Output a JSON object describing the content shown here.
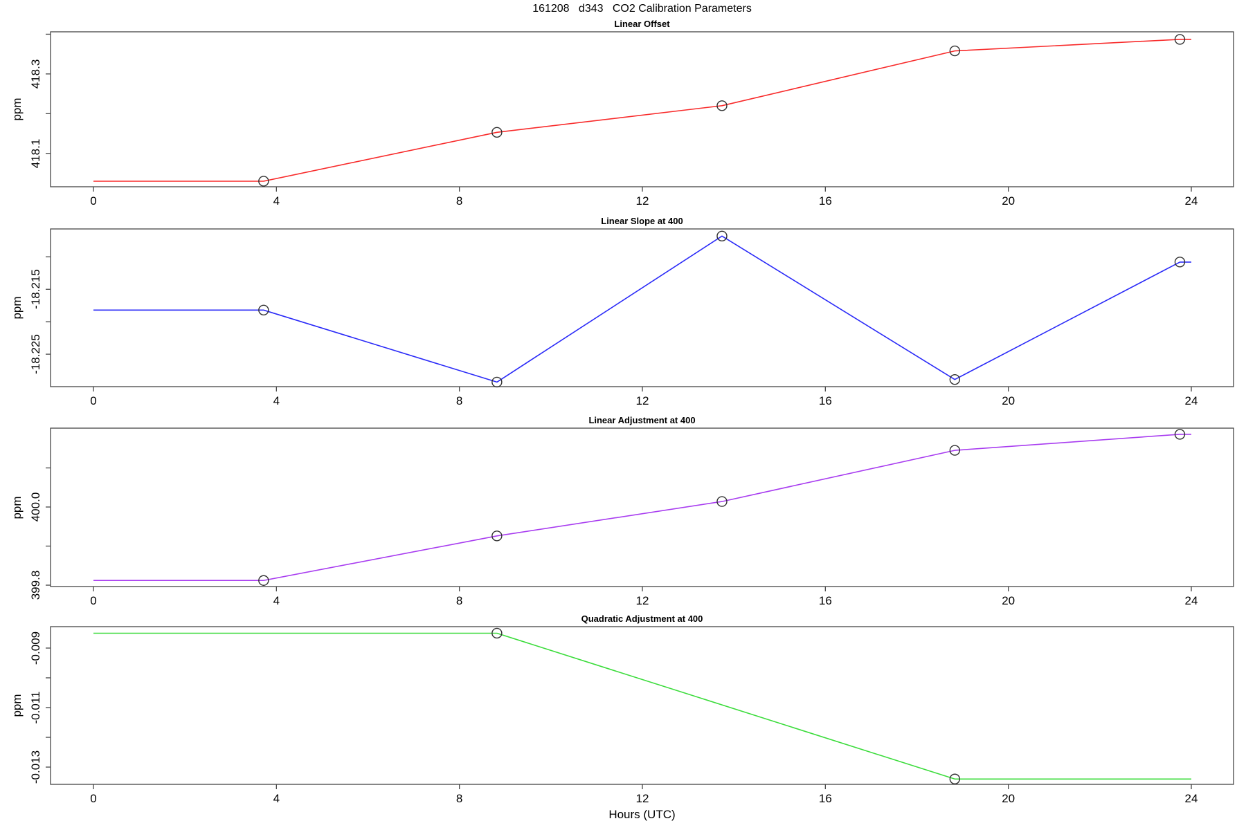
{
  "title": "161208   d343   CO2 Calibration Parameters",
  "xlabel": "Hours (UTC)",
  "axis_color": "#454545",
  "marker_color": "#303030",
  "chart_data": [
    {
      "type": "line",
      "title": "Linear Offset",
      "ylabel": "ppm",
      "color": "#f82a2a",
      "x": [
        3.72,
        8.82,
        13.74,
        18.83,
        23.75
      ],
      "y": [
        418.03,
        418.153,
        418.22,
        418.358,
        418.387
      ],
      "flat_extension_to_edges": true,
      "xlim": [
        0,
        24
      ],
      "ylim": [
        418.016,
        418.406
      ],
      "xticks": [
        0,
        4,
        8,
        12,
        16,
        20,
        24
      ],
      "xtick_labels": [
        "0",
        "4",
        "8",
        "12",
        "16",
        "20",
        "24"
      ],
      "yticks": [
        {
          "value": 418.1,
          "label": "418.1"
        },
        {
          "value": 418.2,
          "label": ""
        },
        {
          "value": 418.3,
          "label": "418.3"
        },
        {
          "value": 418.4,
          "label": ""
        }
      ]
    },
    {
      "type": "line",
      "title": "Linear Slope at 400",
      "ylabel": "ppm",
      "color": "#2a2af8",
      "x": [
        3.72,
        8.82,
        13.74,
        18.83,
        23.75
      ],
      "y": [
        -18.2182,
        -18.2293,
        -18.2068,
        -18.2289,
        -18.2108
      ],
      "flat_extension_to_edges": true,
      "xlim": [
        0,
        24
      ],
      "ylim": [
        -18.23,
        -18.2057
      ],
      "xticks": [
        0,
        4,
        8,
        12,
        16,
        20,
        24
      ],
      "xtick_labels": [
        "0",
        "4",
        "8",
        "12",
        "16",
        "20",
        "24"
      ],
      "yticks": [
        {
          "value": -18.225,
          "label": "-18.225"
        },
        {
          "value": -18.22,
          "label": ""
        },
        {
          "value": -18.215,
          "label": "-18.215"
        },
        {
          "value": -18.21,
          "label": ""
        }
      ]
    },
    {
      "type": "line",
      "title": "Linear Adjustment at 400",
      "ylabel": "ppm",
      "color": "#a83cf0",
      "x": [
        3.72,
        8.82,
        13.74,
        18.83,
        23.75
      ],
      "y": [
        399.812,
        399.926,
        400.014,
        400.145,
        400.186
      ],
      "flat_extension_to_edges": true,
      "xlim": [
        0,
        24
      ],
      "ylim": [
        399.7965,
        400.2018
      ],
      "xticks": [
        0,
        4,
        8,
        12,
        16,
        20,
        24
      ],
      "xtick_labels": [
        "0",
        "4",
        "8",
        "12",
        "16",
        "20",
        "24"
      ],
      "yticks": [
        {
          "value": 399.8,
          "label": "399.8"
        },
        {
          "value": 399.9,
          "label": ""
        },
        {
          "value": 400.0,
          "label": "400.0"
        },
        {
          "value": 400.1,
          "label": ""
        }
      ]
    },
    {
      "type": "line",
      "title": "Quadratic Adjustment at 400",
      "ylabel": "ppm",
      "color": "#3bdc3b",
      "x": [
        8.82,
        18.83
      ],
      "y": [
        -0.0085,
        -0.0134
      ],
      "flat_extension_to_edges": true,
      "xlim": [
        0,
        24
      ],
      "ylim": [
        -0.01358,
        -0.00828
      ],
      "xticks": [
        0,
        4,
        8,
        12,
        16,
        20,
        24
      ],
      "xtick_labels": [
        "0",
        "4",
        "8",
        "12",
        "16",
        "20",
        "24"
      ],
      "yticks": [
        {
          "value": -0.013,
          "label": "-0.013"
        },
        {
          "value": -0.012,
          "label": ""
        },
        {
          "value": -0.011,
          "label": "-0.011"
        },
        {
          "value": -0.01,
          "label": ""
        },
        {
          "value": -0.009,
          "label": "-0.009"
        }
      ]
    }
  ]
}
